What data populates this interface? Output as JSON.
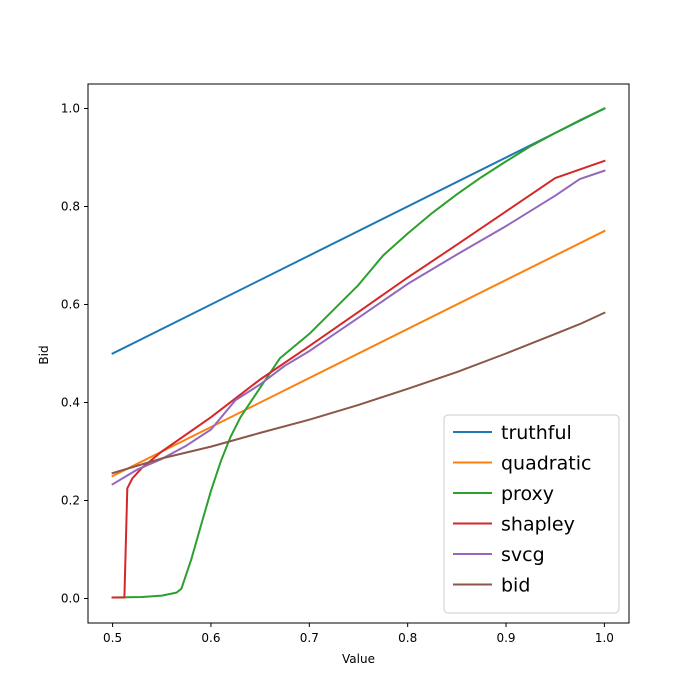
{
  "chart_data": {
    "type": "line",
    "title": "",
    "xlabel": "Value",
    "ylabel": "Bid",
    "xlim": [
      0.475,
      1.025
    ],
    "ylim": [
      -0.05,
      1.05
    ],
    "xticks": [
      "0.5",
      "0.6",
      "0.7",
      "0.8",
      "0.9",
      "1.0"
    ],
    "yticks": [
      "0.0",
      "0.2",
      "0.4",
      "0.6",
      "0.8",
      "1.0"
    ],
    "grid": false,
    "legend_position": "bottom-right",
    "series": [
      {
        "name": "truthful",
        "color": "#1f77b4",
        "points": [
          [
            0.5,
            0.5
          ],
          [
            1.0,
            1.0
          ]
        ]
      },
      {
        "name": "quadratic",
        "color": "#ff7f0e",
        "points": [
          [
            0.5,
            0.25
          ],
          [
            1.0,
            0.75
          ]
        ]
      },
      {
        "name": "proxy",
        "color": "#2ca02c",
        "points": [
          [
            0.5,
            0.002
          ],
          [
            0.53,
            0.003
          ],
          [
            0.55,
            0.006
          ],
          [
            0.565,
            0.012
          ],
          [
            0.57,
            0.02
          ],
          [
            0.58,
            0.08
          ],
          [
            0.59,
            0.15
          ],
          [
            0.6,
            0.22
          ],
          [
            0.61,
            0.28
          ],
          [
            0.62,
            0.33
          ],
          [
            0.63,
            0.37
          ],
          [
            0.65,
            0.43
          ],
          [
            0.67,
            0.49
          ],
          [
            0.7,
            0.54
          ],
          [
            0.75,
            0.64
          ],
          [
            0.775,
            0.7
          ],
          [
            0.8,
            0.745
          ],
          [
            0.825,
            0.787
          ],
          [
            0.85,
            0.825
          ],
          [
            0.875,
            0.86
          ],
          [
            0.9,
            0.892
          ],
          [
            0.925,
            0.923
          ],
          [
            0.95,
            0.95
          ],
          [
            0.975,
            0.976
          ],
          [
            1.0,
            1.0
          ]
        ]
      },
      {
        "name": "shapley",
        "color": "#d62728",
        "points": [
          [
            0.5,
            0.002
          ],
          [
            0.512,
            0.002
          ],
          [
            0.515,
            0.225
          ],
          [
            0.52,
            0.245
          ],
          [
            0.53,
            0.267
          ],
          [
            0.55,
            0.3
          ],
          [
            0.6,
            0.37
          ],
          [
            0.65,
            0.447
          ],
          [
            0.7,
            0.515
          ],
          [
            0.75,
            0.585
          ],
          [
            0.8,
            0.655
          ],
          [
            0.85,
            0.722
          ],
          [
            0.9,
            0.79
          ],
          [
            0.95,
            0.858
          ],
          [
            1.0,
            0.893
          ]
        ]
      },
      {
        "name": "svcg",
        "color": "#9467bd",
        "points": [
          [
            0.5,
            0.233
          ],
          [
            0.525,
            0.263
          ],
          [
            0.55,
            0.285
          ],
          [
            0.575,
            0.312
          ],
          [
            0.6,
            0.345
          ],
          [
            0.625,
            0.405
          ],
          [
            0.65,
            0.437
          ],
          [
            0.675,
            0.475
          ],
          [
            0.7,
            0.505
          ],
          [
            0.75,
            0.573
          ],
          [
            0.8,
            0.642
          ],
          [
            0.85,
            0.702
          ],
          [
            0.9,
            0.76
          ],
          [
            0.95,
            0.822
          ],
          [
            0.975,
            0.856
          ],
          [
            1.0,
            0.873
          ]
        ]
      },
      {
        "name": "bid",
        "color": "#8c564b",
        "points": [
          [
            0.5,
            0.256
          ],
          [
            0.55,
            0.286
          ],
          [
            0.6,
            0.31
          ],
          [
            0.65,
            0.338
          ],
          [
            0.7,
            0.365
          ],
          [
            0.75,
            0.395
          ],
          [
            0.8,
            0.428
          ],
          [
            0.85,
            0.462
          ],
          [
            0.9,
            0.5
          ],
          [
            0.95,
            0.54
          ],
          [
            0.975,
            0.56
          ],
          [
            1.0,
            0.583
          ]
        ]
      }
    ]
  }
}
